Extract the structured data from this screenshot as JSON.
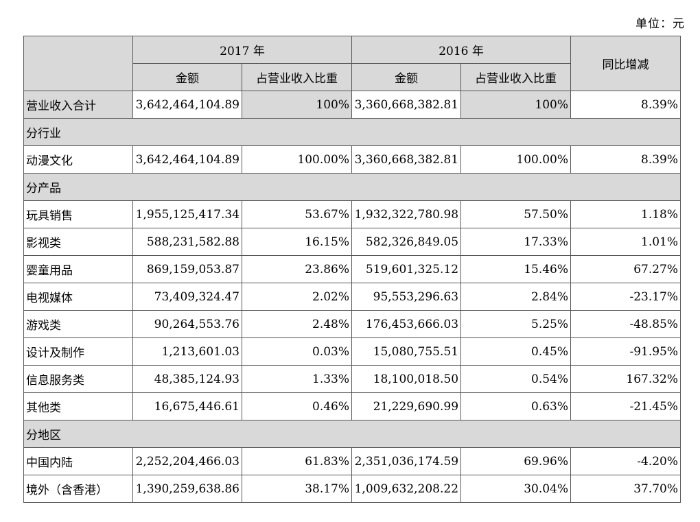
{
  "unit": "单位：元",
  "header": {
    "year1": "2017 年",
    "year2": "2016 年",
    "yoy": "同比增减",
    "amount": "金额",
    "ratio": "占营业收入比重"
  },
  "total": {
    "label": "营业收入合计",
    "amt2017": "3,642,464,104.89",
    "pct2017": "100%",
    "amt2016": "3,360,668,382.81",
    "pct2016": "100%",
    "yoy": "8.39%"
  },
  "rows": [
    {
      "section": "分行业"
    },
    {
      "label": "动漫文化",
      "amt2017": "3,642,464,104.89",
      "pct2017": "100.00%",
      "amt2016": "3,360,668,382.81",
      "pct2016": "100.00%",
      "yoy": "8.39%"
    },
    {
      "section": "分产品"
    },
    {
      "label": "玩具销售",
      "amt2017": "1,955,125,417.34",
      "pct2017": "53.67%",
      "amt2016": "1,932,322,780.98",
      "pct2016": "57.50%",
      "yoy": "1.18%"
    },
    {
      "label": "影视类",
      "amt2017": "588,231,582.88",
      "pct2017": "16.15%",
      "amt2016": "582,326,849.05",
      "pct2016": "17.33%",
      "yoy": "1.01%"
    },
    {
      "label": "婴童用品",
      "amt2017": "869,159,053.87",
      "pct2017": "23.86%",
      "amt2016": "519,601,325.12",
      "pct2016": "15.46%",
      "yoy": "67.27%"
    },
    {
      "label": "电视媒体",
      "amt2017": "73,409,324.47",
      "pct2017": "2.02%",
      "amt2016": "95,553,296.63",
      "pct2016": "2.84%",
      "yoy": "-23.17%"
    },
    {
      "label": "游戏类",
      "amt2017": "90,264,553.76",
      "pct2017": "2.48%",
      "amt2016": "176,453,666.03",
      "pct2016": "5.25%",
      "yoy": "-48.85%"
    },
    {
      "label": "设计及制作",
      "amt2017": "1,213,601.03",
      "pct2017": "0.03%",
      "amt2016": "15,080,755.51",
      "pct2016": "0.45%",
      "yoy": "-91.95%"
    },
    {
      "label": "信息服务类",
      "amt2017": "48,385,124.93",
      "pct2017": "1.33%",
      "amt2016": "18,100,018.50",
      "pct2016": "0.54%",
      "yoy": "167.32%"
    },
    {
      "label": "其他类",
      "amt2017": "16,675,446.61",
      "pct2017": "0.46%",
      "amt2016": "21,229,690.99",
      "pct2016": "0.63%",
      "yoy": "-21.45%"
    },
    {
      "section": "分地区"
    },
    {
      "label": "中国内陆",
      "amt2017": "2,252,204,466.03",
      "pct2017": "61.83%",
      "amt2016": "2,351,036,174.59",
      "pct2016": "69.96%",
      "yoy": "-4.20%"
    },
    {
      "label": "境外（含香港）",
      "amt2017": "1,390,259,638.86",
      "pct2017": "38.17%",
      "amt2016": "1,009,632,208.22",
      "pct2016": "30.04%",
      "yoy": "37.70%"
    }
  ]
}
